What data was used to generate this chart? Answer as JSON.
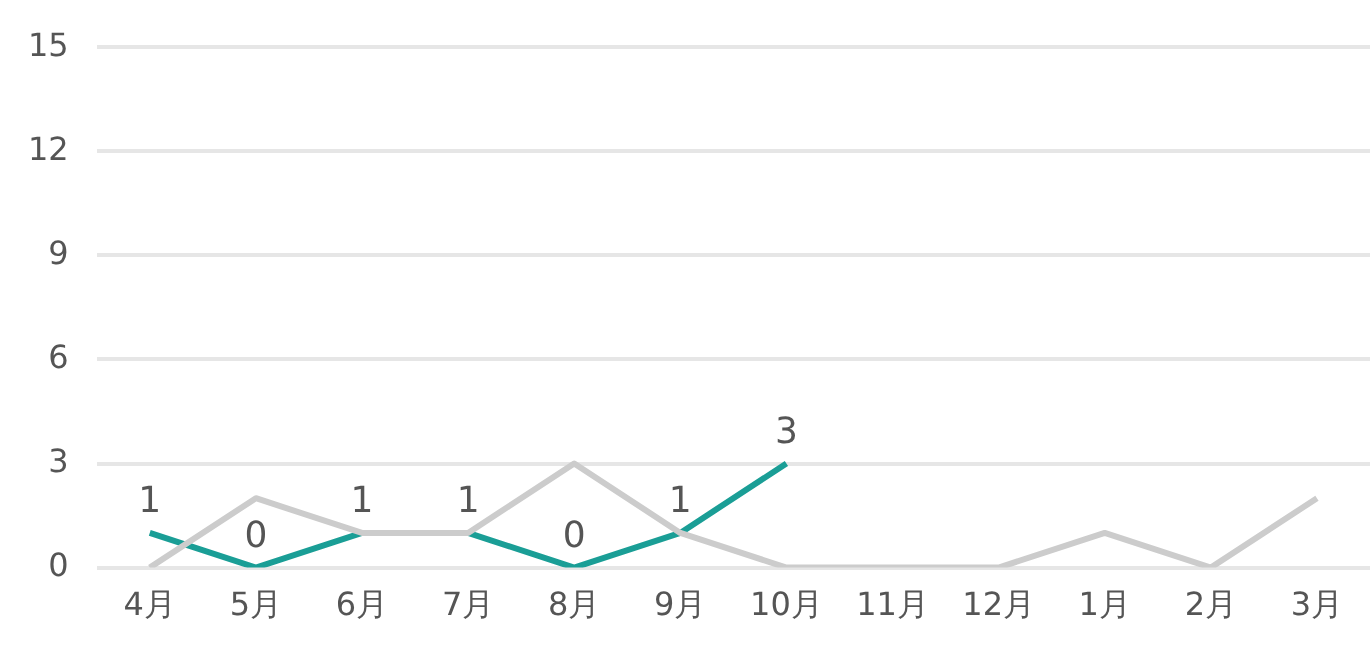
{
  "chart_data": {
    "type": "line",
    "categories": [
      "4月",
      "5月",
      "6月",
      "7月",
      "8月",
      "9月",
      "10月",
      "11月",
      "12月",
      "1月",
      "2月",
      "3月"
    ],
    "series": [
      {
        "color": "#cccccc",
        "values": [
          0,
          2,
          1,
          1,
          3,
          1,
          0,
          0,
          0,
          1,
          0,
          2
        ]
      },
      {
        "color": "#1a9e96",
        "values": [
          1,
          0,
          1,
          1,
          0,
          1,
          3,
          null,
          null,
          null,
          null,
          null
        ],
        "value_labels": [
          "1",
          "0",
          "1",
          "1",
          "0",
          "1",
          "3",
          null,
          null,
          null,
          null,
          null
        ]
      }
    ],
    "ylim": [
      0,
      15
    ],
    "yticks": [
      0,
      3,
      6,
      9,
      12,
      15
    ],
    "grid": "y",
    "legend": false,
    "marker": "none",
    "line_style": "solid"
  }
}
